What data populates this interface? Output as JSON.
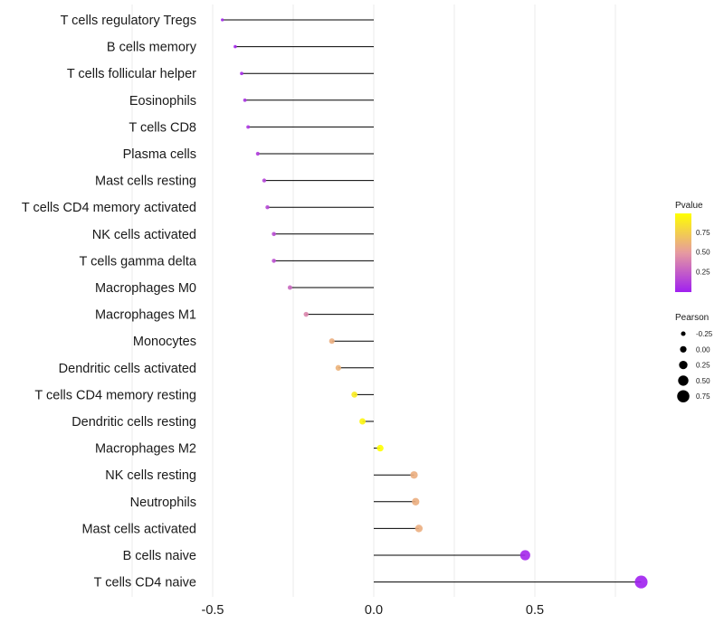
{
  "chart_data": {
    "type": "lollipop",
    "title": "",
    "xlabel": "",
    "ylabel": "",
    "xlim": [
      -0.7,
      0.87
    ],
    "xticks": [
      -0.5,
      0.0,
      0.5
    ],
    "xtick_labels": [
      "-0.5",
      "0.0",
      "0.5"
    ],
    "grid": true,
    "categories": [
      "T cells regulatory  Tregs",
      "B cells memory",
      "T cells follicular helper",
      "Eosinophils",
      "T cells CD8",
      "Plasma cells",
      "Mast cells resting",
      "T cells CD4 memory activated",
      "NK cells activated",
      "T cells gamma delta",
      "Macrophages M0",
      "Macrophages M1",
      "Monocytes",
      "Dendritic cells activated",
      "T cells CD4 memory resting",
      "Dendritic cells resting",
      "Macrophages M2",
      "NK cells resting",
      "Neutrophils",
      "Mast cells activated",
      "B cells naive",
      "T cells CD4 naive"
    ],
    "values": [
      -0.47,
      -0.43,
      -0.41,
      -0.4,
      -0.39,
      -0.36,
      -0.34,
      -0.33,
      -0.31,
      -0.31,
      -0.26,
      -0.21,
      -0.13,
      -0.11,
      -0.06,
      -0.035,
      0.02,
      0.125,
      0.13,
      0.14,
      0.47,
      0.83
    ],
    "pvalues": [
      0.02,
      0.03,
      0.05,
      0.08,
      0.09,
      0.12,
      0.15,
      0.16,
      0.18,
      0.2,
      0.3,
      0.42,
      0.6,
      0.62,
      0.9,
      0.95,
      1.0,
      0.6,
      0.6,
      0.6,
      0.03,
      0.0
    ],
    "legend_color": {
      "title": "Pvalue",
      "ticks": [
        "0.75",
        "0.50",
        "0.25"
      ],
      "tick_values": [
        0.75,
        0.5,
        0.25
      ],
      "color_low": "#a020f0",
      "color_mid": "#e69aa0",
      "color_high": "#ffff00"
    },
    "legend_size": {
      "title": "Pearson",
      "labels": [
        "-0.25",
        "0.00",
        "0.25",
        "0.50",
        "0.75"
      ],
      "values": [
        -0.25,
        0.0,
        0.25,
        0.5,
        0.75
      ]
    },
    "legend_position": "right",
    "stem_color": "#000000",
    "grid_color": "#ebebeb"
  }
}
